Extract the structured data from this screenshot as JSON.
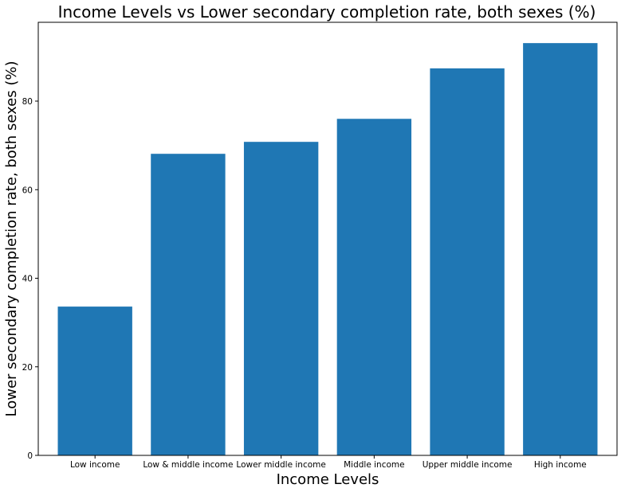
{
  "chart_data": {
    "type": "bar",
    "title": "Income Levels vs Lower secondary completion rate, both sexes (%)",
    "xlabel": "Income Levels",
    "ylabel": "Lower secondary completion rate, both sexes (%)",
    "categories": [
      "Low income",
      "Low & middle income",
      "Lower middle income",
      "Middle income",
      "Upper middle income",
      "High income"
    ],
    "values": [
      33.6,
      68.1,
      70.8,
      76.0,
      87.4,
      93.1
    ],
    "ylim": [
      0,
      97.8
    ],
    "yticks": [
      0,
      20,
      40,
      60,
      80
    ],
    "bar_color": "#1f77b4",
    "grid": false,
    "legend": "none"
  }
}
